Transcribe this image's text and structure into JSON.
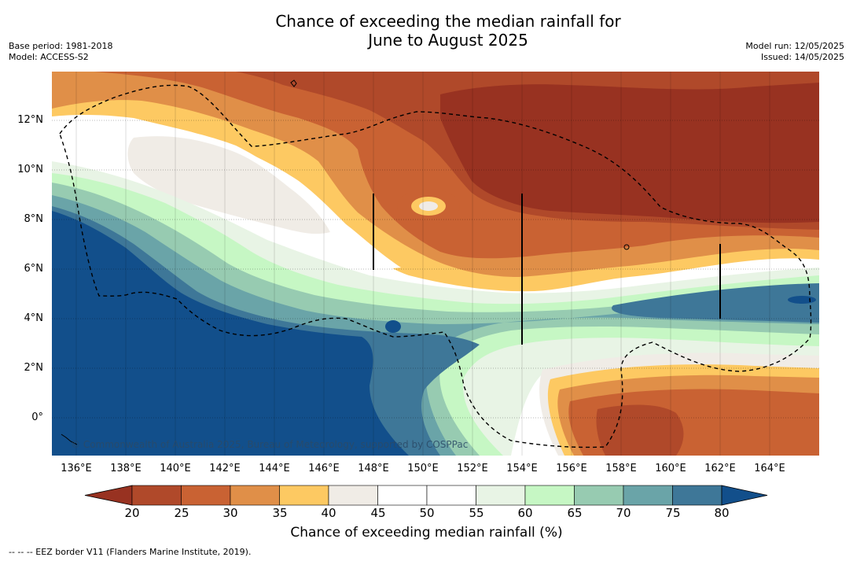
{
  "header": {
    "title_line1": "Chance of exceeding the median rainfall for",
    "title_line2": "June to August 2025",
    "base_period": "Base period: 1981-2018",
    "model": "Model: ACCESS-S2",
    "model_run": "Model run: 12/05/2025",
    "issued": "Issued: 14/05/2025"
  },
  "map": {
    "lat_labels": [
      "12°N",
      "10°N",
      "8°N",
      "6°N",
      "4°N",
      "2°N",
      "0°"
    ],
    "lon_labels": [
      "136°E",
      "138°E",
      "140°E",
      "142°E",
      "144°E",
      "146°E",
      "148°E",
      "150°E",
      "152°E",
      "154°E",
      "156°E",
      "158°E",
      "160°E",
      "162°E",
      "164°E"
    ],
    "copyright": "© Commonwealth of Australia 2025, Bureau of Meteorology, supported by COSPPac",
    "gridlines": true,
    "border_style": "dashed"
  },
  "colorbar": {
    "title": "Chance of exceeding median rainfall (%)",
    "ticks": [
      "20",
      "25",
      "30",
      "35",
      "40",
      "45",
      "50",
      "55",
      "60",
      "65",
      "70",
      "75",
      "80"
    ],
    "bins": [
      {
        "range": "<20",
        "color": "#983221"
      },
      {
        "range": "20-25",
        "color": "#b0492a"
      },
      {
        "range": "25-30",
        "color": "#c96233"
      },
      {
        "range": "30-35",
        "color": "#e08f48"
      },
      {
        "range": "35-40",
        "color": "#fdc962"
      },
      {
        "range": "40-45",
        "color": "#f0ece6"
      },
      {
        "range": "45-50",
        "color": "#ffffff"
      },
      {
        "range": "50-55",
        "color": "#ffffff"
      },
      {
        "range": "55-60",
        "color": "#e8f4e5"
      },
      {
        "range": "60-65",
        "color": "#c6f7c4"
      },
      {
        "range": "65-70",
        "color": "#97cbb1"
      },
      {
        "range": "70-75",
        "color": "#6aa4a8"
      },
      {
        "range": "75-80",
        "color": "#3e7798"
      },
      {
        "range": ">80",
        "color": "#124f8b"
      }
    ]
  },
  "footer": {
    "legend_text": "--  --  -- EEZ border V11 (Flanders Marine Institute, 2019)."
  }
}
